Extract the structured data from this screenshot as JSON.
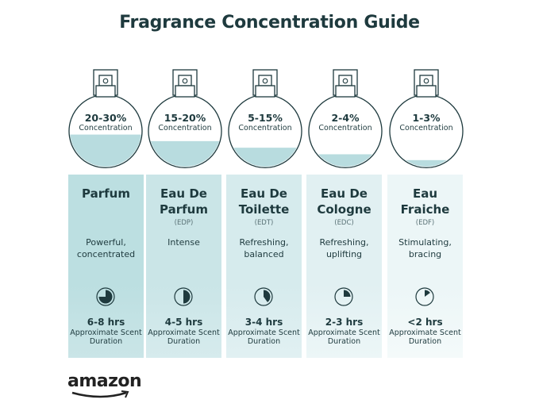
{
  "title": "Fragrance Concentration Guide",
  "colors": {
    "text": "#1e3a3e",
    "liquid": "#b8dcdf",
    "panels": [
      "#bcdfe1",
      "#cae5e7",
      "#d6ebed",
      "#e1f0f2",
      "#ecf6f7"
    ]
  },
  "types": [
    {
      "percent": "20-30%",
      "concentration": "Concentration",
      "fill_level": 0.45,
      "name": "Parfum",
      "abbr": "",
      "description": "Powerful, concentrated",
      "duration": "6-8 hrs",
      "duration_label": "Approximate Scent Duration",
      "clock_fraction": 0.75
    },
    {
      "percent": "15-20%",
      "concentration": "Concentration",
      "fill_level": 0.36,
      "name": "Eau De Parfum",
      "abbr": "(EDP)",
      "description": "Intense",
      "duration": "4-5 hrs",
      "duration_label": "Approximate Scent Duration",
      "clock_fraction": 0.5
    },
    {
      "percent": "5-15%",
      "concentration": "Concentration",
      "fill_level": 0.27,
      "name": "Eau De Toilette",
      "abbr": "(EDT)",
      "description": "Refreshing, balanced",
      "duration": "3-4 hrs",
      "duration_label": "Approximate Scent Duration",
      "clock_fraction": 0.4
    },
    {
      "percent": "2-4%",
      "concentration": "Concentration",
      "fill_level": 0.18,
      "name": "Eau De Cologne",
      "abbr": "(EDC)",
      "description": "Refreshing, uplifting",
      "duration": "2-3 hrs",
      "duration_label": "Approximate Scent Duration",
      "clock_fraction": 0.25
    },
    {
      "percent": "1-3%",
      "concentration": "Concentration",
      "fill_level": 0.1,
      "name": "Eau Fraiche",
      "abbr": "(EDF)",
      "description": "Stimulating, bracing",
      "duration": "<2 hrs",
      "duration_label": "Approximate Scent Duration",
      "clock_fraction": 0.15
    }
  ],
  "logo": "amazon"
}
